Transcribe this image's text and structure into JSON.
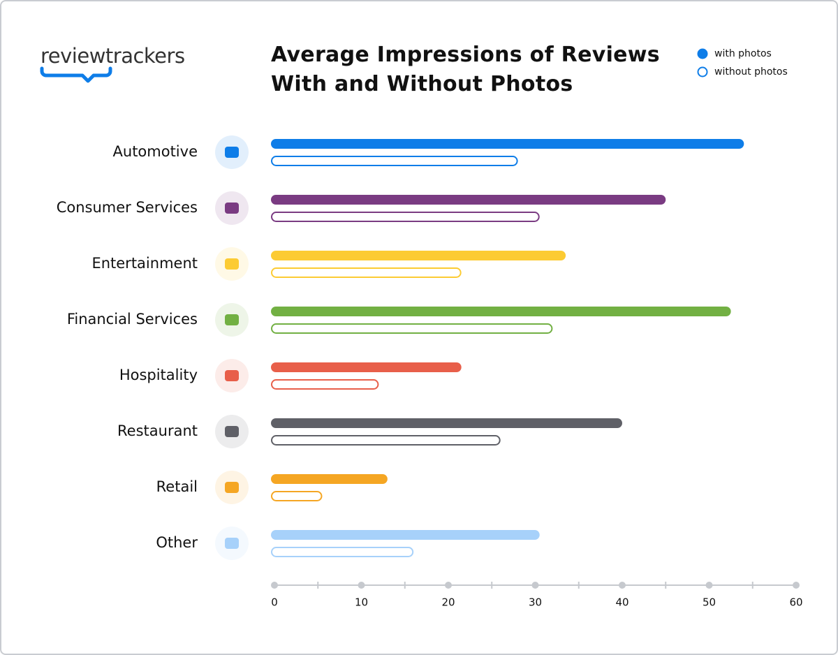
{
  "logo": "reviewtrackers",
  "chart_data": {
    "type": "bar",
    "orientation": "horizontal",
    "title": "Average Impressions of Reviews With and Without Photos",
    "categories": [
      "Automotive",
      "Consumer Services",
      "Entertainment",
      "Financial Services",
      "Hospitality",
      "Restaurant",
      "Retail",
      "Other"
    ],
    "category_colors": [
      "#0e7de8",
      "#7a3b82",
      "#fccb33",
      "#72b043",
      "#e85f4a",
      "#5f6067",
      "#f5a623",
      "#a7d1fa"
    ],
    "series": [
      {
        "name": "with photos",
        "color": "#0e7de8",
        "style": "filled",
        "values": [
          54,
          45,
          33.5,
          52.5,
          21.5,
          40,
          13,
          30.5
        ]
      },
      {
        "name": "without photos",
        "color": "#0e7de8",
        "style": "outline",
        "values": [
          28,
          30.5,
          21.5,
          32,
          12,
          26,
          5.5,
          16
        ]
      }
    ],
    "xlim": [
      0,
      60
    ],
    "xticks": [
      0,
      10,
      20,
      30,
      40,
      50,
      60
    ],
    "xminor_ticks": [
      5,
      15,
      25,
      35,
      45,
      55
    ],
    "legend": "top-right"
  }
}
